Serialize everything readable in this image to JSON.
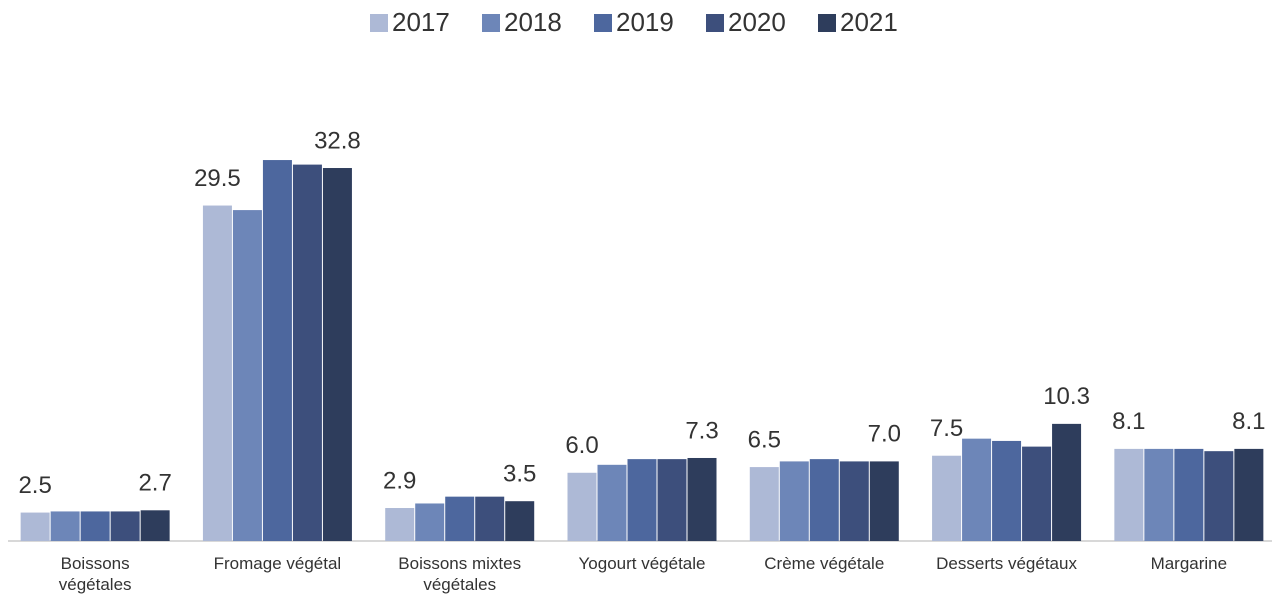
{
  "chart_data": {
    "type": "bar",
    "categories": [
      "Boissons\nvégétales",
      "Fromage végétal",
      "Boissons mixtes\nvégétales",
      "Yogourt végétale",
      "Crème végétale",
      "Desserts  végétaux",
      "Margarine"
    ],
    "series": [
      {
        "name": "2017",
        "color": "#adb9d6",
        "values": [
          2.5,
          29.5,
          2.9,
          6.0,
          6.5,
          7.5,
          8.1
        ],
        "value_labels": [
          "2.5",
          "29.5",
          "2.9",
          "6.0",
          "6.5",
          "7.5",
          "8.1"
        ]
      },
      {
        "name": "2018",
        "color": "#6d86b8",
        "values": [
          2.6,
          29.1,
          3.3,
          6.7,
          7.0,
          9.0,
          8.1
        ]
      },
      {
        "name": "2019",
        "color": "#4d679e",
        "values": [
          2.6,
          33.5,
          3.9,
          7.2,
          7.2,
          8.8,
          8.1
        ]
      },
      {
        "name": "2020",
        "color": "#3d4f7c",
        "values": [
          2.6,
          33.1,
          3.9,
          7.2,
          7.0,
          8.3,
          7.9
        ]
      },
      {
        "name": "2021",
        "color": "#2e3d5c",
        "values": [
          2.7,
          32.8,
          3.5,
          7.3,
          7.0,
          10.3,
          8.1
        ],
        "value_labels": [
          "2.7",
          "32.8",
          "3.5",
          "7.3",
          "7.0",
          "10.3",
          "8.1"
        ]
      }
    ],
    "ylim": [
      0,
      35
    ],
    "legend": "top"
  }
}
